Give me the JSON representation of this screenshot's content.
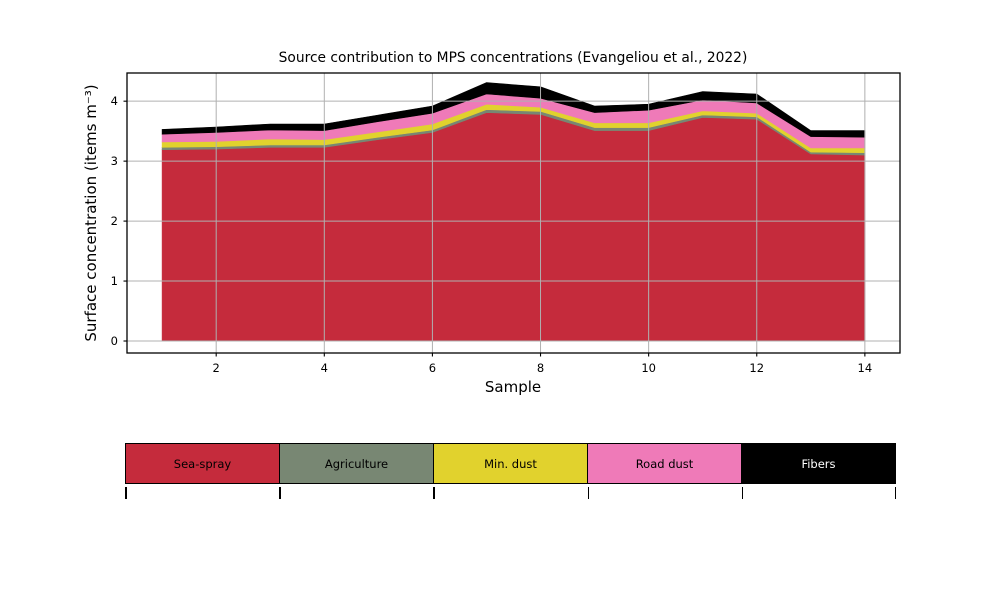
{
  "figure": {
    "background": "#ffffff",
    "gridline_color": "#b0b0b0",
    "axis_color": "#000000"
  },
  "chart_data": {
    "type": "area",
    "stacked": true,
    "title": "Source contribution to MPS concentrations (Evangeliou et al., 2022)",
    "xlabel": "Sample",
    "ylabel": "Surface concentration (items m⁻³)",
    "x": [
      1,
      2,
      3,
      4,
      5,
      6,
      7,
      8,
      9,
      10,
      11,
      12,
      13,
      14
    ],
    "series": [
      {
        "name": "Sea-spray",
        "color": "#c52b3c",
        "label_color": "#000000",
        "values": [
          3.19,
          3.2,
          3.23,
          3.23,
          3.36,
          3.48,
          3.81,
          3.78,
          3.51,
          3.51,
          3.73,
          3.7,
          3.12,
          3.1
        ]
      },
      {
        "name": "Agriculture",
        "color": "#788773",
        "label_color": "#000000",
        "values": [
          0.04,
          0.04,
          0.04,
          0.04,
          0.04,
          0.04,
          0.05,
          0.05,
          0.05,
          0.05,
          0.04,
          0.04,
          0.03,
          0.04
        ]
      },
      {
        "name": "Min. dust",
        "color": "#e1d22d",
        "label_color": "#000000",
        "values": [
          0.09,
          0.09,
          0.1,
          0.09,
          0.09,
          0.1,
          0.09,
          0.07,
          0.08,
          0.08,
          0.07,
          0.06,
          0.07,
          0.08
        ]
      },
      {
        "name": "Road dust",
        "color": "#ef7ab8",
        "label_color": "#000000",
        "values": [
          0.13,
          0.15,
          0.15,
          0.15,
          0.17,
          0.18,
          0.17,
          0.15,
          0.17,
          0.21,
          0.18,
          0.17,
          0.19,
          0.18
        ]
      },
      {
        "name": "Fibers",
        "color": "#000000",
        "label_color": "#ffffff",
        "values": [
          0.08,
          0.09,
          0.1,
          0.11,
          0.11,
          0.12,
          0.19,
          0.19,
          0.11,
          0.1,
          0.14,
          0.15,
          0.1,
          0.11
        ]
      }
    ],
    "stack_totals": [
      3.53,
      3.57,
      3.62,
      3.62,
      3.77,
      3.92,
      4.31,
      4.24,
      3.92,
      3.95,
      4.16,
      4.12,
      3.51,
      3.51
    ],
    "xlim": [
      0.35,
      14.65
    ],
    "ylim": [
      -0.2,
      4.47
    ],
    "xticks": [
      2,
      4,
      6,
      8,
      10,
      12,
      14
    ],
    "yticks": [
      0,
      1,
      2,
      3,
      4
    ],
    "grid": true,
    "grid_above_data": true,
    "legend_position": "bottom-table"
  }
}
